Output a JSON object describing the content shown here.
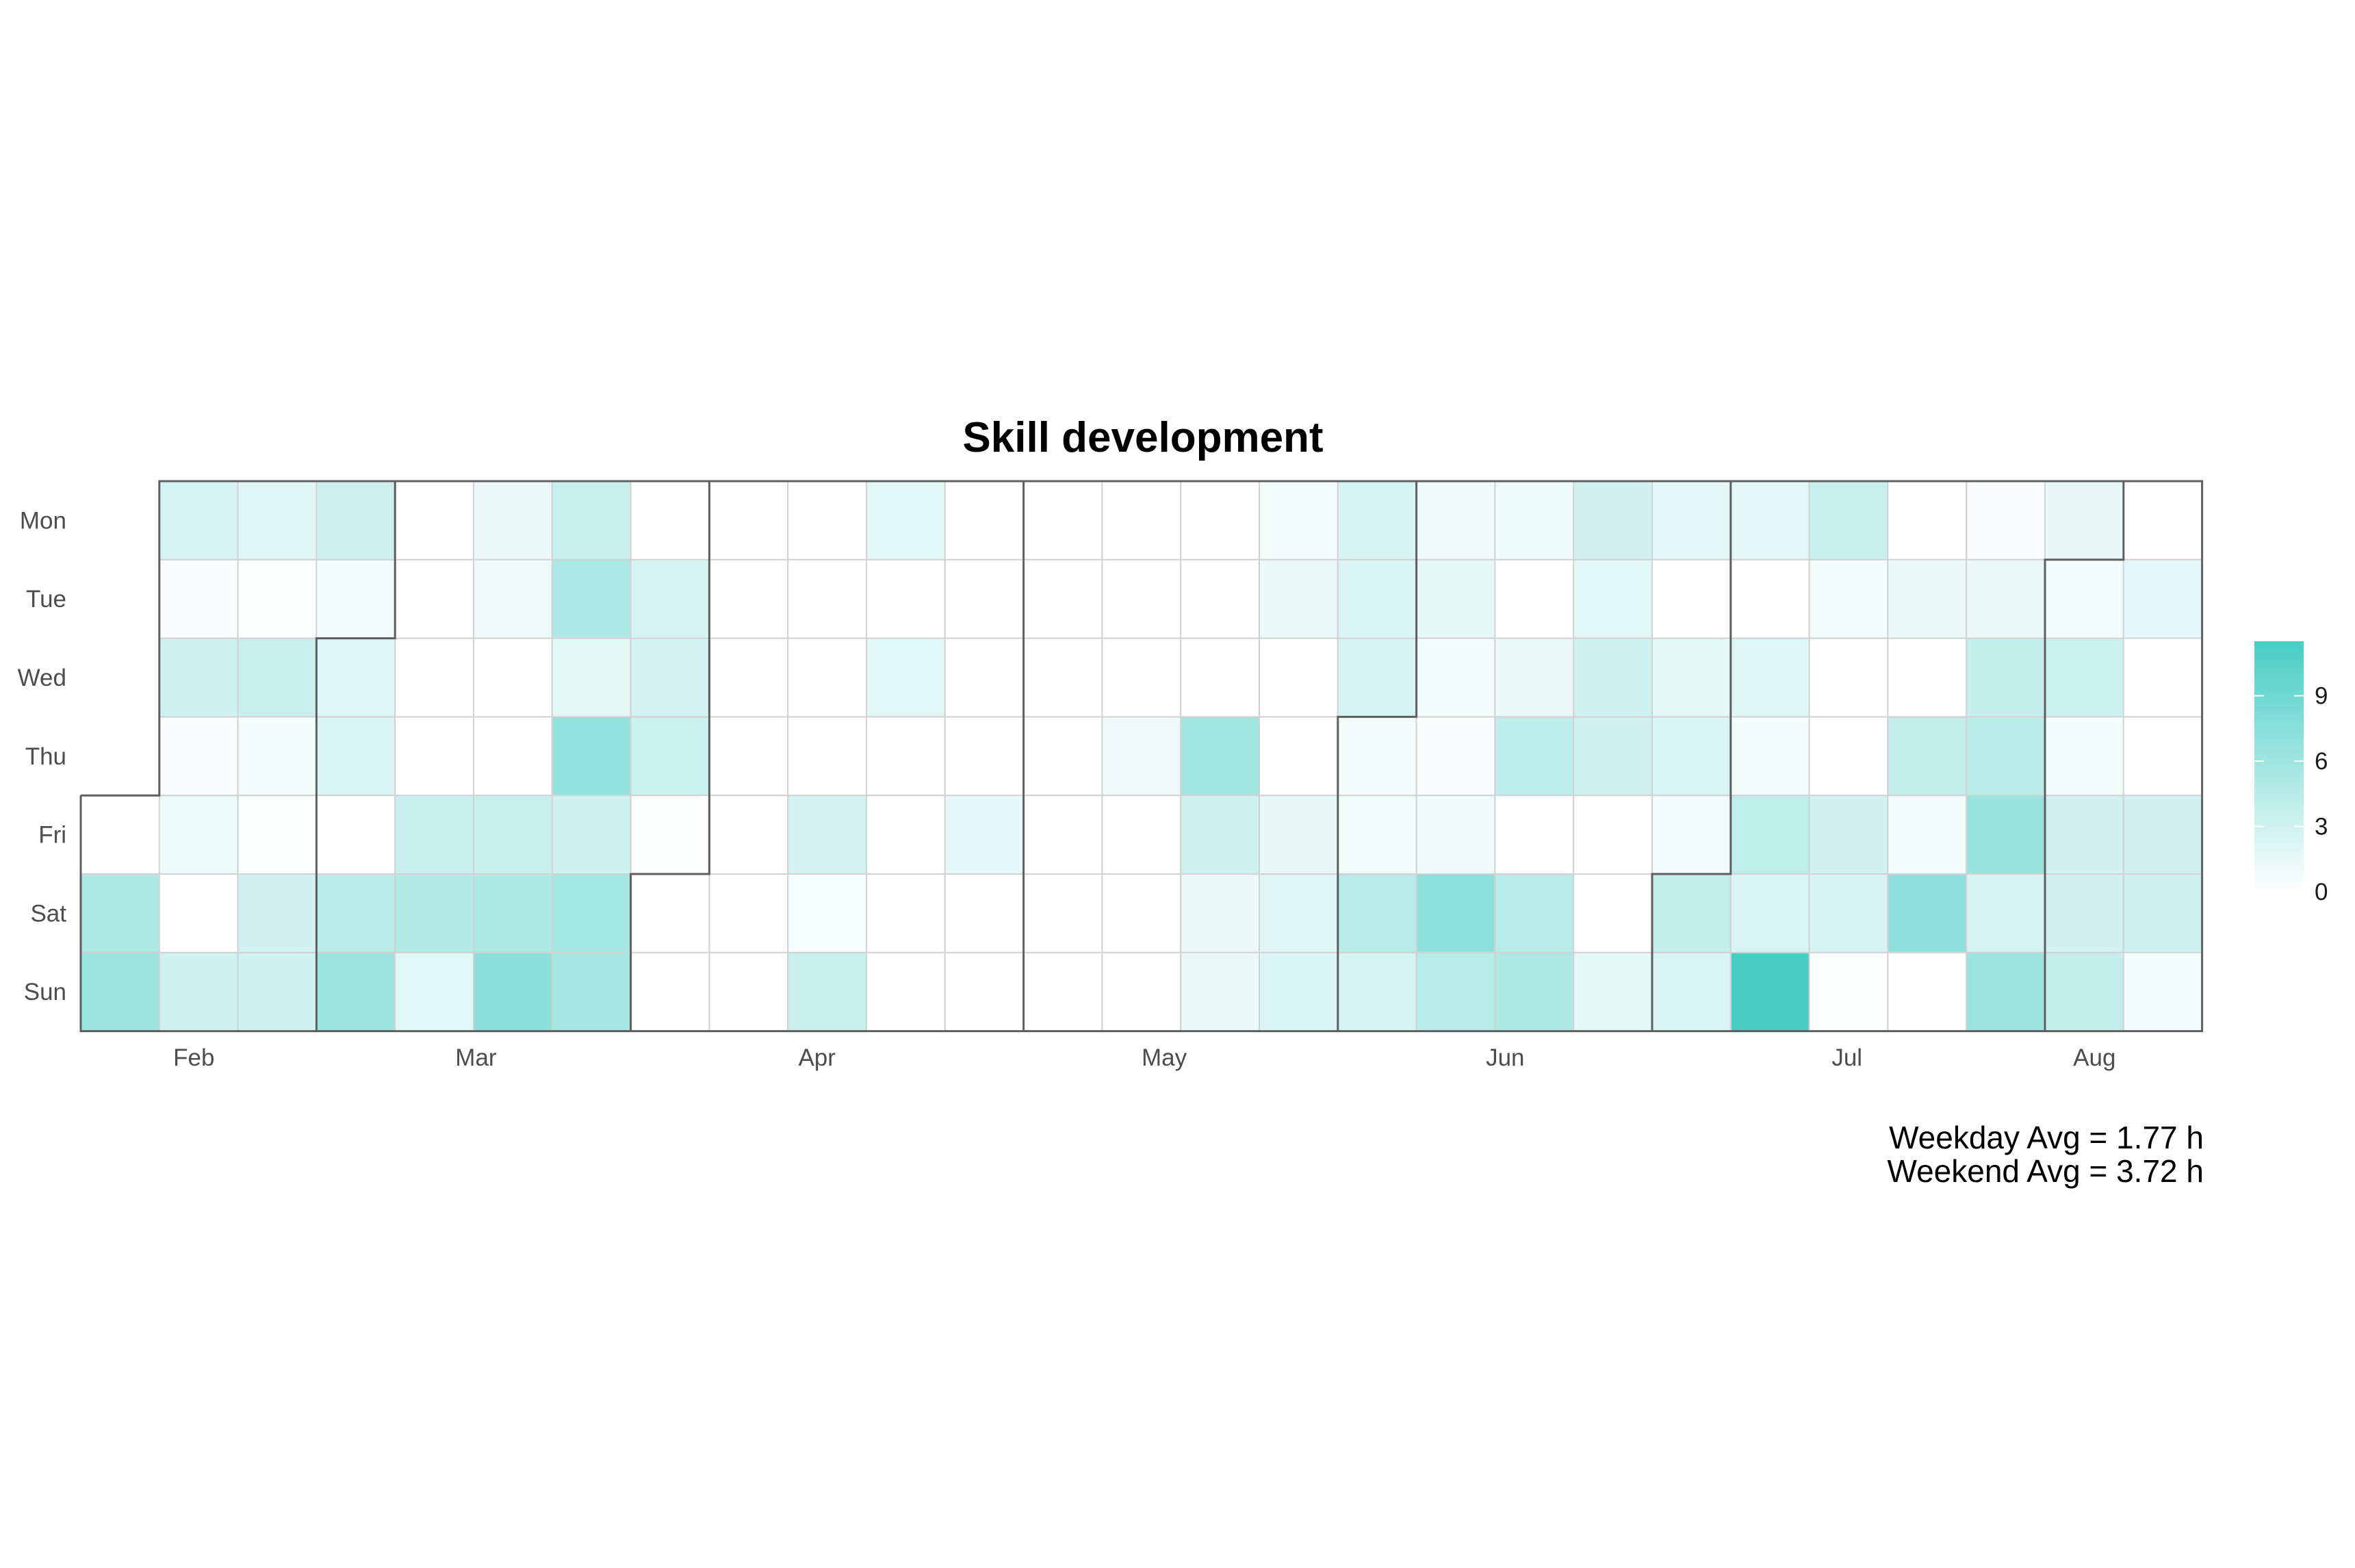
{
  "chart_data": {
    "type": "heatmap",
    "title": "Skill development",
    "y_categories": [
      "Mon",
      "Tue",
      "Wed",
      "Thu",
      "Fri",
      "Sat",
      "Sun"
    ],
    "x_tick_labels": [
      {
        "label": "Feb",
        "week": 1.44
      },
      {
        "label": "Mar",
        "week": 5.03
      },
      {
        "label": "Apr",
        "week": 9.37
      },
      {
        "label": "May",
        "week": 13.79
      },
      {
        "label": "Jun",
        "week": 18.13
      },
      {
        "label": "Jul",
        "week": 22.48
      },
      {
        "label": "Aug",
        "week": 25.63
      }
    ],
    "weeks": 27,
    "color_scale": {
      "low": "#ffffff",
      "high": "#48cdc5",
      "min": 0,
      "max": 11.5,
      "ticks": [
        0,
        3,
        6,
        9
      ]
    },
    "values": [
      [
        null,
        2.5,
        2.0,
        3.2,
        0,
        1.3,
        3.5,
        0,
        0,
        0,
        1.9,
        0,
        0,
        0,
        0,
        0.6,
        2.6,
        1.0,
        1.2,
        2.9,
        1.8,
        1.8,
        3.5,
        0,
        0.4,
        1.5,
        0
      ],
      [
        null,
        0.4,
        0.1,
        0.7,
        0,
        1.1,
        5.2,
        2.6,
        0,
        0,
        0,
        0,
        0,
        0,
        0,
        1.4,
        2.3,
        1.7,
        0,
        1.9,
        0,
        0,
        0.6,
        1.3,
        1.3,
        0.8,
        1.6
      ],
      [
        null,
        3.0,
        3.5,
        2.1,
        0,
        0,
        1.7,
        2.8,
        0,
        0,
        1.9,
        0,
        0,
        0,
        0,
        0,
        2.7,
        0.6,
        1.3,
        3.1,
        1.7,
        2.1,
        0,
        0,
        3.7,
        3.3,
        0
      ],
      [
        null,
        0.4,
        0.7,
        2.4,
        0,
        0,
        6.9,
        3.3,
        0,
        0,
        0,
        0,
        0,
        1.1,
        5.9,
        0,
        0.8,
        0.4,
        4.2,
        3.0,
        2.4,
        0.6,
        0,
        3.8,
        4.4,
        0.6,
        0
      ],
      [
        0,
        1.2,
        0.3,
        0,
        3.4,
        3.5,
        3.1,
        0.2,
        0,
        2.8,
        0,
        1.6,
        0,
        0,
        3.2,
        1.5,
        0.8,
        1.0,
        0,
        0,
        0.8,
        4.1,
        2.9,
        0.9,
        6.5,
        2.9,
        2.9
      ],
      [
        5.0,
        0,
        2.9,
        4.4,
        4.9,
        5.0,
        5.8,
        0,
        0,
        0.5,
        0,
        0,
        0,
        0,
        1.3,
        2.0,
        4.5,
        7.1,
        4.6,
        0,
        3.9,
        2.4,
        2.6,
        7.0,
        2.7,
        2.9,
        3.1
      ],
      [
        6.2,
        3.1,
        3.0,
        6.3,
        1.9,
        7.2,
        5.5,
        0,
        0,
        3.4,
        0,
        0,
        0,
        0,
        1.4,
        2.3,
        2.6,
        4.6,
        5.0,
        1.7,
        2.4,
        11.5,
        0.2,
        0,
        6.2,
        3.7,
        0.6
      ]
    ],
    "month_boundary_steps": [
      {
        "week": 0,
        "row": 4
      },
      {
        "week": 3,
        "row": 2
      },
      {
        "week": 7,
        "row": 5
      },
      {
        "week": 12,
        "row": 7
      },
      {
        "week": 16,
        "row": 3
      },
      {
        "week": 20,
        "row": 5
      },
      {
        "week": 25,
        "row": 1
      }
    ]
  },
  "stats": {
    "weekday_avg": "Weekday Avg = 1.77 h",
    "weekend_avg": "Weekend Avg = 3.72 h"
  }
}
